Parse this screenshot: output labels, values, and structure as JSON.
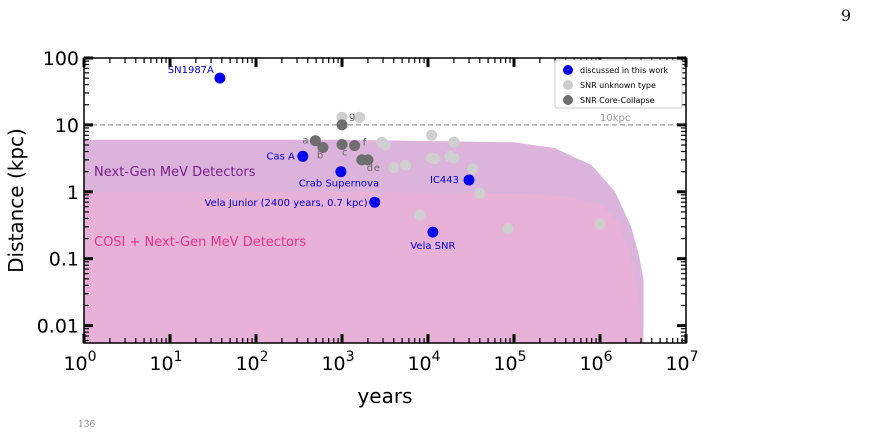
{
  "page": {
    "page_number": "9",
    "footer_number": "136"
  },
  "chart_data": {
    "type": "scatter",
    "xscale": "log",
    "yscale": "log",
    "xlabel": "years",
    "ylabel": "Distance (kpc)",
    "xlim": [
      1,
      10000000
    ],
    "ylim": [
      0.0055,
      100
    ],
    "x_ticks": [
      {
        "value": 1,
        "base": "10",
        "exp": "0"
      },
      {
        "value": 10,
        "base": "10",
        "exp": "1"
      },
      {
        "value": 100,
        "base": "10",
        "exp": "2"
      },
      {
        "value": 1000,
        "base": "10",
        "exp": "3"
      },
      {
        "value": 10000,
        "base": "10",
        "exp": "4"
      },
      {
        "value": 100000,
        "base": "10",
        "exp": "5"
      },
      {
        "value": 1000000,
        "base": "10",
        "exp": "6"
      },
      {
        "value": 10000000,
        "base": "10",
        "exp": "7"
      }
    ],
    "y_ticks": [
      {
        "value": 0.01,
        "label": "0.01"
      },
      {
        "value": 0.1,
        "label": "0.1"
      },
      {
        "value": 1,
        "label": "1"
      },
      {
        "value": 10,
        "label": "10"
      },
      {
        "value": 100,
        "label": "100"
      }
    ],
    "reference_line": {
      "y": 10,
      "label": "10kpc",
      "color": "#999999"
    },
    "regions": [
      {
        "name": "Next-Gen MeV Detectors",
        "label_color": "#7a1f8c",
        "fill": "#dcb4db",
        "boundary": [
          [
            1,
            6
          ],
          [
            1000,
            6
          ],
          [
            100000,
            5.5
          ],
          [
            300000,
            4.5
          ],
          [
            800000,
            2.5
          ],
          [
            1500000,
            1
          ],
          [
            2300000,
            0.3
          ],
          [
            2800000,
            0.12
          ],
          [
            3200000,
            0.05
          ],
          [
            3200000,
            0.0055
          ]
        ]
      },
      {
        "name": "COSI + Next-Gen MeV Detectors",
        "label_color": "#e8308a",
        "fill": "#e8b2d8",
        "boundary": [
          [
            1,
            1
          ],
          [
            1000,
            1
          ],
          [
            100000,
            0.95
          ],
          [
            400000,
            0.85
          ],
          [
            1000000,
            0.65
          ],
          [
            1600000,
            0.35
          ],
          [
            2200000,
            0.12
          ],
          [
            2800000,
            0.03
          ],
          [
            3000000,
            0.0055
          ]
        ]
      }
    ],
    "legend": {
      "placement": "top-right",
      "entries": [
        {
          "label": "discussed in this work",
          "color": "#0000ee"
        },
        {
          "label": "SNR unknown type",
          "color": "#cfcfcf"
        },
        {
          "label": "SNR Core-Collapse",
          "color": "#6e6e6e"
        }
      ]
    },
    "series": [
      {
        "name": "discussed in this work",
        "color": "#0000ee",
        "points": [
          {
            "x": 38,
            "y": 50,
            "label": "SN1987A"
          },
          {
            "x": 350,
            "y": 3.4,
            "label": "Cas A"
          },
          {
            "x": 970,
            "y": 2.0,
            "label": "Crab Supernova"
          },
          {
            "x": 2400,
            "y": 0.7,
            "label": "Vela Junior (2400 years, 0.7 kpc)"
          },
          {
            "x": 30000,
            "y": 1.5,
            "label": "IC443"
          },
          {
            "x": 11400,
            "y": 0.25,
            "label": "Vela SNR"
          }
        ]
      },
      {
        "name": "SNR unknown type",
        "color": "#cfcfcf",
        "points": [
          {
            "x": 1000,
            "y": 13
          },
          {
            "x": 1600,
            "y": 13
          },
          {
            "x": 11000,
            "y": 7
          },
          {
            "x": 2900,
            "y": 5.5
          },
          {
            "x": 3200,
            "y": 5
          },
          {
            "x": 20000,
            "y": 5.5
          },
          {
            "x": 5500,
            "y": 2.5
          },
          {
            "x": 4000,
            "y": 2.3
          },
          {
            "x": 11000,
            "y": 3.2
          },
          {
            "x": 12000,
            "y": 3.1
          },
          {
            "x": 18000,
            "y": 3.4
          },
          {
            "x": 20000,
            "y": 3.2
          },
          {
            "x": 33000,
            "y": 2.2
          },
          {
            "x": 40000,
            "y": 0.95
          },
          {
            "x": 8000,
            "y": 0.45
          },
          {
            "x": 85000,
            "y": 0.28
          },
          {
            "x": 1000000,
            "y": 0.33
          }
        ]
      },
      {
        "name": "SNR Core-Collapse",
        "color": "#6e6e6e",
        "points": [
          {
            "x": 490,
            "y": 5.8,
            "label": "a"
          },
          {
            "x": 600,
            "y": 4.6,
            "label": "b"
          },
          {
            "x": 1000,
            "y": 10,
            "label": "g"
          },
          {
            "x": 1000,
            "y": 5.1,
            "label": "c"
          },
          {
            "x": 1400,
            "y": 4.9,
            "label": "f"
          },
          {
            "x": 1700,
            "y": 3.0,
            "label": "d"
          },
          {
            "x": 2000,
            "y": 3.0,
            "label": "e"
          }
        ]
      }
    ]
  }
}
